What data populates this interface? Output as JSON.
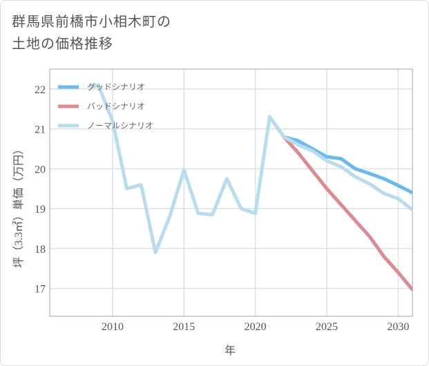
{
  "title_lines": [
    "群馬県前橋市小相木町の",
    "土地の価格推移"
  ],
  "chart_data": {
    "type": "line",
    "xlabel": "年",
    "ylabel": "坪（3.3㎡）単価（万円）",
    "xlim": [
      2005.6,
      2031
    ],
    "ylim": [
      16.3,
      22.5
    ],
    "xticks": [
      2010,
      2015,
      2020,
      2025,
      2030
    ],
    "yticks": [
      17,
      18,
      19,
      20,
      21,
      22
    ],
    "grid": true,
    "legend_position": "top-left",
    "series": [
      {
        "name": "グッドシナリオ",
        "color": "#6ab8ee",
        "x": [
          2021,
          2022,
          2023,
          2024,
          2025,
          2026,
          2027,
          2028,
          2029,
          2030,
          2031
        ],
        "y": [
          21.3,
          20.8,
          20.7,
          20.5,
          20.3,
          20.25,
          20.0,
          19.88,
          19.75,
          19.58,
          19.4
        ]
      },
      {
        "name": "バッドシナリオ",
        "color": "#de8a92",
        "x": [
          2021,
          2022,
          2023,
          2024,
          2025,
          2026,
          2027,
          2028,
          2029,
          2030,
          2031
        ],
        "y": [
          21.3,
          20.8,
          20.4,
          19.95,
          19.5,
          19.1,
          18.7,
          18.3,
          17.8,
          17.4,
          16.97
        ]
      },
      {
        "name": "ノーマルシナリオ",
        "color": "#b8dcec",
        "x": [
          2008.5,
          2009,
          2010,
          2011,
          2012,
          2013,
          2014,
          2015,
          2016,
          2017,
          2018,
          2019,
          2020,
          2021,
          2022,
          2023,
          2024,
          2025,
          2026,
          2027,
          2028,
          2029,
          2030,
          2031
        ],
        "y": [
          22.05,
          22.1,
          21.2,
          19.5,
          19.6,
          17.9,
          18.8,
          19.97,
          18.88,
          18.85,
          19.75,
          19.0,
          18.88,
          21.3,
          20.8,
          20.6,
          20.45,
          20.2,
          20.05,
          19.8,
          19.62,
          19.38,
          19.25,
          18.97
        ]
      }
    ]
  }
}
